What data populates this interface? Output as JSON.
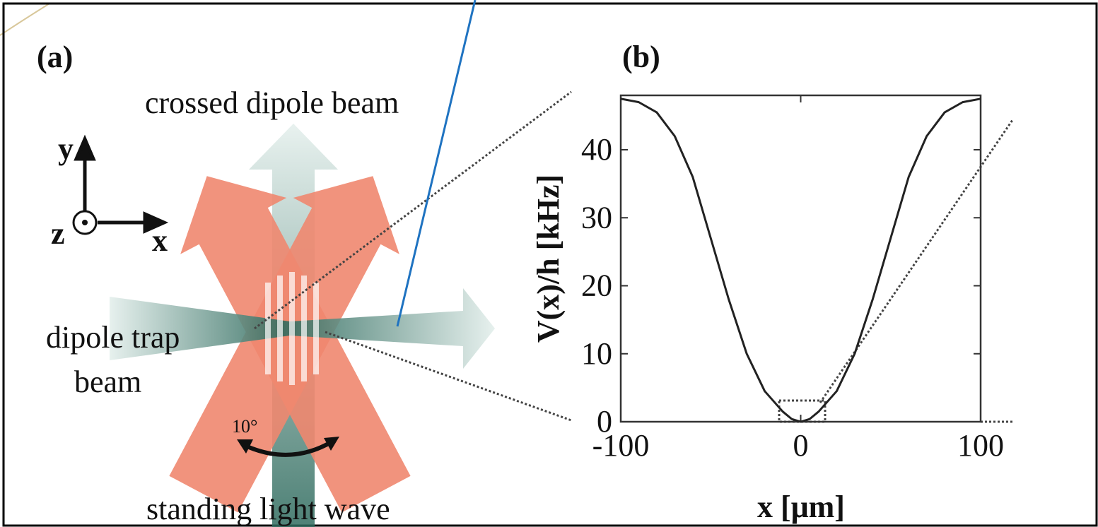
{
  "diagram": {
    "panel_label": "(a)",
    "top_label": "crossed dipole beam",
    "axis_y": "y",
    "axis_z": "z",
    "axis_x": "x",
    "left_label_line1": "dipole trap",
    "left_label_line2": "beam",
    "angle_label": "10°",
    "bottom_label": "standing light wave"
  },
  "chart_data": {
    "type": "line",
    "panel_label": "(b)",
    "x_label": "x [μm]",
    "y_label": "V(x)/h [kHz]",
    "x": [
      -100,
      -90,
      -80,
      -70,
      -60,
      -50,
      -40,
      -30,
      -20,
      -10,
      -5,
      0,
      5,
      10,
      20,
      30,
      40,
      50,
      60,
      70,
      80,
      90,
      100
    ],
    "series": [
      {
        "color": "#222222",
        "values": [
          47.5,
          47,
          45.5,
          42,
          36,
          27,
          18,
          10,
          4.5,
          1.5,
          0.4,
          0,
          0.4,
          1.5,
          4.5,
          10,
          18,
          27,
          36,
          42,
          45.5,
          47,
          47.5
        ]
      }
    ],
    "xlim": [
      -100,
      100
    ],
    "ylim": [
      0,
      48
    ],
    "xticks": [
      -100,
      0,
      100
    ],
    "yticks": [
      0,
      10,
      20,
      30,
      40
    ]
  }
}
